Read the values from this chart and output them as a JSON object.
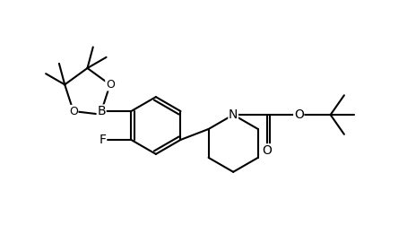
{
  "background_color": "#ffffff",
  "line_color": "#000000",
  "line_width": 1.5,
  "font_size": 9,
  "figsize": [
    4.54,
    2.8
  ],
  "dpi": 100,
  "xlim": [
    0,
    10
  ],
  "ylim": [
    0,
    6.2
  ]
}
